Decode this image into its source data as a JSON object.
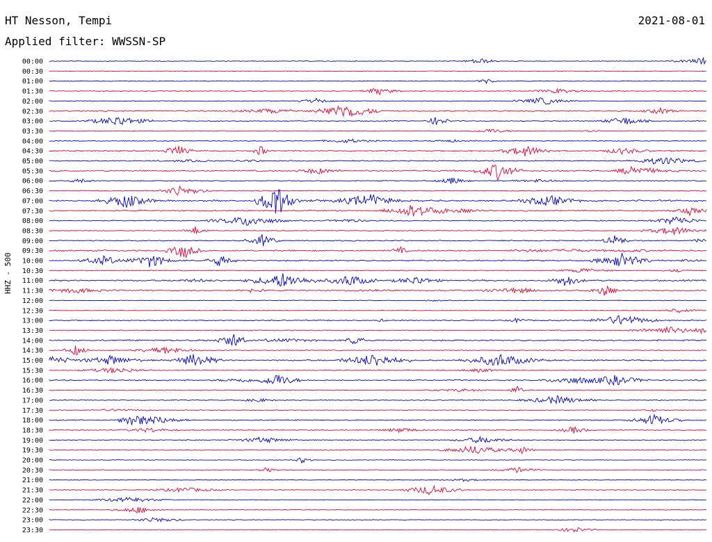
{
  "header": {
    "station": "HT Nesson, Tempi",
    "filter": "Applied filter: WWSSN-SP",
    "date": "2021-08-01"
  },
  "chart_data": {
    "type": "line",
    "title": "HT Nesson, Tempi",
    "subtitle": "Applied filter: WWSSN-SP",
    "date": "2021-08-01",
    "ylabel": "HHZ - 500",
    "xlabel": "",
    "line_interval_minutes": 30,
    "colors": [
      "#0000dd",
      "#ee0033"
    ],
    "rows": [
      {
        "label": "00:00",
        "activity": 0.25
      },
      {
        "label": "00:30",
        "activity": 0.05
      },
      {
        "label": "01:00",
        "activity": 0.1
      },
      {
        "label": "01:30",
        "activity": 0.3
      },
      {
        "label": "02:00",
        "activity": 0.25
      },
      {
        "label": "02:30",
        "activity": 0.6
      },
      {
        "label": "03:00",
        "activity": 0.5
      },
      {
        "label": "03:30",
        "activity": 0.3
      },
      {
        "label": "04:00",
        "activity": 0.4
      },
      {
        "label": "04:30",
        "activity": 0.7
      },
      {
        "label": "05:00",
        "activity": 0.5
      },
      {
        "label": "05:30",
        "activity": 0.9
      },
      {
        "label": "06:00",
        "activity": 0.45
      },
      {
        "label": "06:30",
        "activity": 0.4
      },
      {
        "label": "07:00",
        "activity": 1.0
      },
      {
        "label": "07:30",
        "activity": 0.7
      },
      {
        "label": "08:00",
        "activity": 0.5
      },
      {
        "label": "08:30",
        "activity": 0.35
      },
      {
        "label": "09:00",
        "activity": 0.55
      },
      {
        "label": "09:30",
        "activity": 0.9
      },
      {
        "label": "10:00",
        "activity": 0.75
      },
      {
        "label": "10:30",
        "activity": 0.3
      },
      {
        "label": "11:00",
        "activity": 0.85
      },
      {
        "label": "11:30",
        "activity": 0.75
      },
      {
        "label": "12:00",
        "activity": 0.15
      },
      {
        "label": "12:30",
        "activity": 0.1
      },
      {
        "label": "13:00",
        "activity": 0.5
      },
      {
        "label": "13:30",
        "activity": 0.4
      },
      {
        "label": "14:00",
        "activity": 0.85
      },
      {
        "label": "14:30",
        "activity": 0.35
      },
      {
        "label": "15:00",
        "activity": 0.9
      },
      {
        "label": "15:30",
        "activity": 0.3
      },
      {
        "label": "16:00",
        "activity": 0.7
      },
      {
        "label": "16:30",
        "activity": 0.35
      },
      {
        "label": "17:00",
        "activity": 0.3
      },
      {
        "label": "17:30",
        "activity": 0.3
      },
      {
        "label": "18:00",
        "activity": 0.5
      },
      {
        "label": "18:30",
        "activity": 0.5
      },
      {
        "label": "19:00",
        "activity": 0.4
      },
      {
        "label": "19:30",
        "activity": 0.3
      },
      {
        "label": "20:00",
        "activity": 0.2
      },
      {
        "label": "20:30",
        "activity": 0.3
      },
      {
        "label": "21:00",
        "activity": 0.15
      },
      {
        "label": "21:30",
        "activity": 0.4
      },
      {
        "label": "22:00",
        "activity": 0.1
      },
      {
        "label": "22:30",
        "activity": 0.1
      },
      {
        "label": "23:00",
        "activity": 0.15
      },
      {
        "label": "23:30",
        "activity": 0.15
      }
    ]
  }
}
